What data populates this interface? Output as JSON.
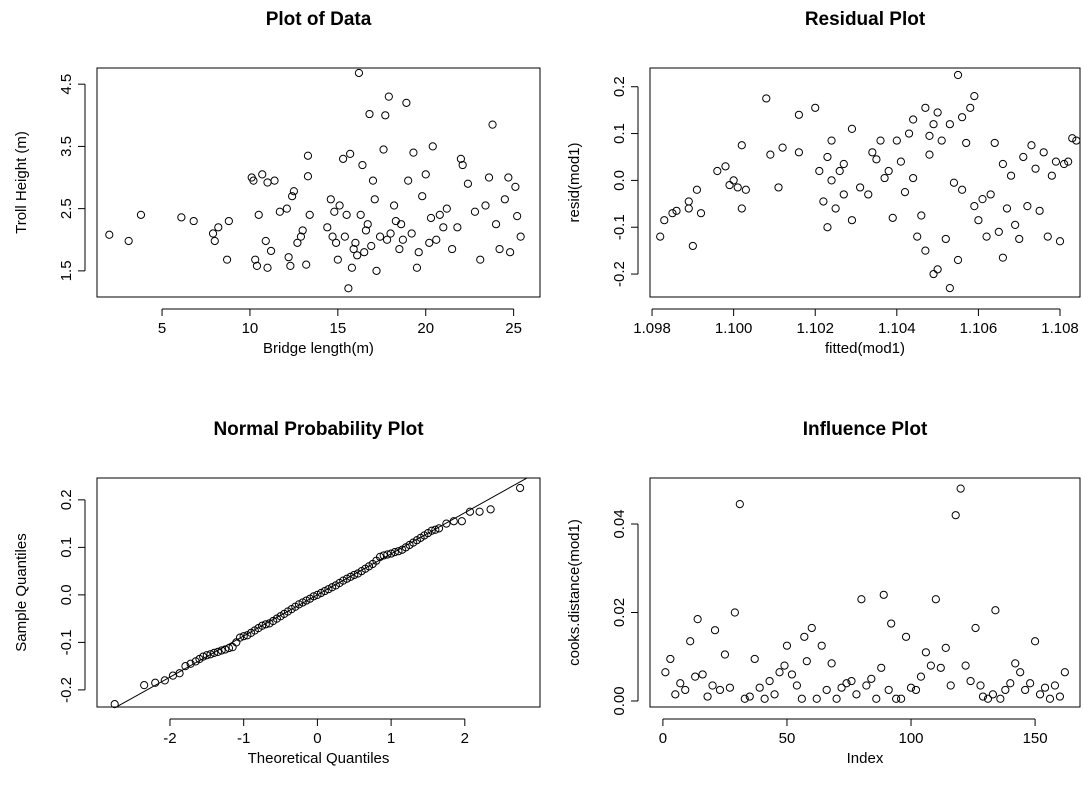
{
  "chart_data": [
    {
      "type": "scatter",
      "title": "Plot of Data",
      "xlabel": "Bridge length(m)",
      "ylabel": "Troll Height (m)",
      "xlim": [
        1.3,
        26.5
      ],
      "ylim": [
        1.08,
        4.76
      ],
      "xticks": [
        5,
        10,
        15,
        20,
        25
      ],
      "yticks": [
        1.5,
        2.5,
        3.5,
        4.5
      ],
      "x": [
        2.0,
        3.1,
        3.8,
        6.1,
        6.8,
        7.9,
        8.0,
        8.2,
        8.7,
        8.8,
        10.1,
        10.2,
        10.3,
        10.4,
        10.5,
        10.7,
        10.9,
        11.0,
        11.0,
        11.2,
        11.4,
        11.7,
        12.1,
        12.2,
        12.3,
        12.4,
        12.5,
        12.7,
        12.9,
        13.0,
        13.2,
        13.3,
        13.3,
        13.4,
        14.4,
        14.6,
        14.7,
        14.8,
        15.0,
        15.1,
        15.3,
        15.5,
        15.6,
        15.7,
        15.8,
        16.0,
        16.2,
        16.3,
        16.4,
        16.5,
        16.7,
        16.8,
        17.0,
        17.2,
        17.4,
        17.6,
        17.7,
        17.9,
        18.0,
        18.2,
        18.5,
        18.7,
        18.9,
        19.0,
        19.3,
        19.5,
        19.8,
        20.0,
        20.2,
        20.4,
        20.8,
        21.0,
        21.5,
        22.0,
        22.1,
        22.4,
        22.8,
        23.1,
        23.4,
        23.6,
        23.8,
        24.0,
        24.2,
        24.5,
        24.7,
        24.8,
        25.1,
        25.4,
        25.2,
        17.1,
        18.3,
        19.2,
        21.2,
        15.9,
        16.6,
        17.8,
        18.6,
        19.6,
        20.6,
        21.8,
        14.9,
        15.4,
        16.1,
        16.9,
        20.3
      ],
      "y": [
        2.08,
        1.98,
        2.4,
        2.36,
        2.3,
        2.1,
        1.98,
        2.2,
        1.68,
        2.3,
        3.0,
        2.95,
        1.68,
        1.58,
        2.4,
        3.05,
        1.98,
        2.92,
        1.55,
        1.82,
        2.95,
        2.45,
        2.5,
        1.72,
        1.58,
        2.7,
        2.78,
        1.95,
        2.05,
        2.15,
        1.6,
        3.35,
        3.02,
        2.4,
        2.2,
        2.65,
        2.05,
        2.45,
        1.68,
        2.55,
        3.3,
        2.4,
        1.22,
        3.38,
        1.55,
        1.95,
        4.68,
        2.4,
        3.2,
        1.8,
        2.25,
        4.02,
        2.95,
        1.5,
        2.05,
        3.45,
        4.0,
        4.3,
        2.1,
        2.55,
        1.85,
        2.0,
        4.2,
        2.95,
        3.4,
        1.55,
        2.7,
        3.05,
        1.95,
        3.5,
        2.4,
        2.2,
        1.85,
        3.3,
        3.2,
        2.9,
        2.45,
        1.68,
        2.55,
        3.0,
        3.85,
        2.25,
        1.85,
        2.65,
        3.0,
        1.8,
        2.85,
        2.05,
        2.38,
        2.65,
        2.3,
        2.1,
        2.5,
        1.85,
        2.15,
        2.0,
        2.25,
        1.8,
        2.0,
        2.2,
        1.95,
        2.05,
        1.75,
        1.9,
        2.35
      ]
    },
    {
      "type": "scatter",
      "title": "Residual Plot",
      "xlabel": "fitted(mod1)",
      "ylabel": "resid(mod1)",
      "xlim": [
        1.09795,
        1.10849
      ],
      "ylim": [
        -0.249,
        0.24
      ],
      "xticks": [
        1.098,
        {
          "value": 1.1,
          "label": "1.100"
        },
        1.102,
        1.104,
        1.106,
        1.108
      ],
      "yticks": [
        -0.2,
        -0.1,
        {
          "value": 0,
          "label": "0.0"
        },
        0.1,
        0.2
      ],
      "x": [
        1.0982,
        1.0983,
        1.0985,
        1.0986,
        1.0989,
        1.0989,
        1.099,
        1.0991,
        1.0992,
        1.0996,
        1.0998,
        1.0999,
        1.1,
        1.1001,
        1.1002,
        1.1002,
        1.1003,
        1.1008,
        1.1009,
        1.1011,
        1.1012,
        1.1016,
        1.1016,
        1.102,
        1.1021,
        1.1022,
        1.1023,
        1.1023,
        1.1024,
        1.1024,
        1.1025,
        1.1026,
        1.1027,
        1.1027,
        1.1029,
        1.1029,
        1.1031,
        1.1033,
        1.1034,
        1.1035,
        1.1036,
        1.1037,
        1.1038,
        1.1039,
        1.104,
        1.1041,
        1.1042,
        1.1043,
        1.1044,
        1.1044,
        1.1045,
        1.1046,
        1.1047,
        1.1047,
        1.1048,
        1.1048,
        1.1049,
        1.1049,
        1.105,
        1.105,
        1.1051,
        1.1052,
        1.1053,
        1.1053,
        1.1054,
        1.1055,
        1.1055,
        1.1056,
        1.1056,
        1.1057,
        1.1058,
        1.1059,
        1.1059,
        1.106,
        1.1061,
        1.1062,
        1.1063,
        1.1064,
        1.1065,
        1.1066,
        1.1066,
        1.1067,
        1.1068,
        1.1069,
        1.107,
        1.1071,
        1.1072,
        1.1073,
        1.1074,
        1.1075,
        1.1076,
        1.1077,
        1.1078,
        1.1079,
        1.108,
        1.1081,
        1.1082,
        1.1083,
        1.1084
      ],
      "y": [
        -0.12,
        -0.085,
        -0.07,
        -0.065,
        -0.06,
        -0.045,
        -0.14,
        -0.02,
        -0.07,
        0.02,
        0.03,
        -0.01,
        0.0,
        -0.015,
        0.075,
        -0.06,
        -0.02,
        0.175,
        0.055,
        -0.015,
        0.07,
        0.14,
        0.06,
        0.155,
        0.02,
        -0.045,
        0.05,
        -0.1,
        0.0,
        0.085,
        -0.06,
        0.02,
        0.035,
        -0.03,
        0.11,
        -0.085,
        -0.015,
        -0.03,
        0.06,
        0.045,
        0.085,
        0.005,
        0.02,
        -0.08,
        0.085,
        0.04,
        -0.025,
        0.1,
        0.13,
        0.005,
        -0.12,
        -0.075,
        0.155,
        -0.15,
        0.095,
        0.055,
        -0.2,
        0.12,
        0.145,
        -0.19,
        0.085,
        -0.125,
        0.12,
        -0.23,
        -0.005,
        -0.17,
        0.225,
        0.135,
        -0.02,
        0.08,
        0.155,
        0.18,
        -0.055,
        -0.085,
        -0.04,
        -0.12,
        -0.03,
        0.08,
        -0.11,
        -0.165,
        0.035,
        -0.06,
        0.01,
        -0.095,
        -0.125,
        0.05,
        -0.055,
        0.075,
        0.025,
        -0.065,
        0.06,
        -0.12,
        0.01,
        0.04,
        -0.13,
        0.035,
        0.04,
        0.09,
        0.085
      ]
    },
    {
      "type": "scatter",
      "title": "Normal Probability Plot",
      "xlabel": "Theoretical Quantiles",
      "ylabel": "Sample Quantiles",
      "xlim": [
        -2.99,
        3.02
      ],
      "ylim": [
        -0.236,
        0.246
      ],
      "xticks": [
        -2,
        -1,
        0,
        1,
        2
      ],
      "yticks": [
        -0.2,
        -0.1,
        {
          "value": 0,
          "label": "0.0"
        },
        0.1,
        0.2
      ],
      "line": {
        "intercept": 0,
        "slope": 0.0865
      },
      "x": [
        -2.75,
        -2.35,
        -2.2,
        -2.07,
        -1.96,
        -1.87,
        -1.79,
        -1.72,
        -1.65,
        -1.6,
        -1.55,
        -1.5,
        -1.45,
        -1.4,
        -1.35,
        -1.3,
        -1.25,
        -1.2,
        -1.15,
        -1.1,
        -1.05,
        -1.0,
        -0.95,
        -0.9,
        -0.85,
        -0.8,
        -0.75,
        -0.7,
        -0.65,
        -0.6,
        -0.55,
        -0.5,
        -0.45,
        -0.4,
        -0.35,
        -0.3,
        -0.25,
        -0.2,
        -0.15,
        -0.1,
        -0.05,
        0.0,
        0.05,
        0.1,
        0.15,
        0.2,
        0.25,
        0.3,
        0.35,
        0.4,
        0.45,
        0.5,
        0.55,
        0.6,
        0.65,
        0.7,
        0.75,
        0.8,
        0.85,
        0.9,
        0.95,
        1.0,
        1.05,
        1.1,
        1.15,
        1.2,
        1.25,
        1.3,
        1.35,
        1.4,
        1.45,
        1.5,
        1.55,
        1.6,
        1.65,
        1.75,
        1.85,
        1.96,
        2.07,
        2.2,
        2.35,
        2.75
      ],
      "y": [
        -0.23,
        -0.19,
        -0.185,
        -0.18,
        -0.17,
        -0.165,
        -0.15,
        -0.145,
        -0.14,
        -0.135,
        -0.13,
        -0.127,
        -0.125,
        -0.122,
        -0.12,
        -0.117,
        -0.115,
        -0.112,
        -0.11,
        -0.1,
        -0.09,
        -0.087,
        -0.085,
        -0.08,
        -0.075,
        -0.07,
        -0.065,
        -0.062,
        -0.06,
        -0.055,
        -0.05,
        -0.045,
        -0.04,
        -0.035,
        -0.03,
        -0.025,
        -0.02,
        -0.016,
        -0.012,
        -0.008,
        -0.003,
        0.0,
        0.004,
        0.008,
        0.012,
        0.016,
        0.02,
        0.025,
        0.03,
        0.034,
        0.038,
        0.042,
        0.045,
        0.05,
        0.055,
        0.06,
        0.065,
        0.072,
        0.08,
        0.083,
        0.085,
        0.087,
        0.09,
        0.092,
        0.095,
        0.1,
        0.105,
        0.11,
        0.115,
        0.12,
        0.125,
        0.13,
        0.135,
        0.137,
        0.14,
        0.15,
        0.155,
        0.155,
        0.175,
        0.175,
        0.18,
        0.225
      ]
    },
    {
      "type": "scatter",
      "title": "Influence Plot",
      "xlabel": "Index",
      "ylabel": "cooks.distance(mod1)",
      "xlim": [
        -5.2,
        168.1
      ],
      "ylim": [
        -0.00136,
        0.0504
      ],
      "xticks": [
        0,
        50,
        100,
        150
      ],
      "yticks": [
        {
          "value": 0,
          "label": "0.00"
        },
        0.02,
        0.04
      ],
      "x": [
        1,
        3,
        5,
        7,
        9,
        11,
        13,
        14,
        16,
        18,
        20,
        21,
        23,
        25,
        27,
        29,
        31,
        33,
        35,
        37,
        39,
        41,
        43,
        45,
        47,
        49,
        50,
        52,
        54,
        56,
        57,
        58,
        60,
        62,
        64,
        66,
        68,
        70,
        72,
        74,
        76,
        78,
        80,
        82,
        84,
        86,
        88,
        89,
        91,
        92,
        94,
        96,
        98,
        100,
        102,
        104,
        106,
        108,
        110,
        112,
        114,
        116,
        118,
        120,
        122,
        124,
        126,
        128,
        129,
        131,
        133,
        134,
        136,
        138,
        140,
        142,
        144,
        146,
        148,
        150,
        152,
        154,
        156,
        158,
        160,
        162
      ],
      "y": [
        0.0065,
        0.0095,
        0.0015,
        0.004,
        0.0025,
        0.0135,
        0.0055,
        0.0185,
        0.006,
        0.001,
        0.0035,
        0.016,
        0.0025,
        0.0105,
        0.003,
        0.02,
        0.0445,
        0.0005,
        0.001,
        0.0095,
        0.003,
        0.0005,
        0.0045,
        0.0015,
        0.0065,
        0.008,
        0.0125,
        0.006,
        0.0035,
        0.0005,
        0.0145,
        0.009,
        0.0165,
        0.0005,
        0.0125,
        0.0025,
        0.0085,
        0.0005,
        0.003,
        0.004,
        0.0045,
        0.0015,
        0.023,
        0.0035,
        0.005,
        0.0005,
        0.0075,
        0.024,
        0.0025,
        0.0175,
        0.0005,
        0.0005,
        0.0145,
        0.003,
        0.0025,
        0.0055,
        0.011,
        0.008,
        0.023,
        0.0075,
        0.012,
        0.0035,
        0.042,
        0.048,
        0.008,
        0.0045,
        0.0165,
        0.0035,
        0.001,
        0.0005,
        0.0015,
        0.0205,
        0.0005,
        0.0025,
        0.004,
        0.0085,
        0.0065,
        0.0025,
        0.004,
        0.0135,
        0.0015,
        0.003,
        0.0005,
        0.0035,
        0.001,
        0.0065
      ]
    }
  ]
}
